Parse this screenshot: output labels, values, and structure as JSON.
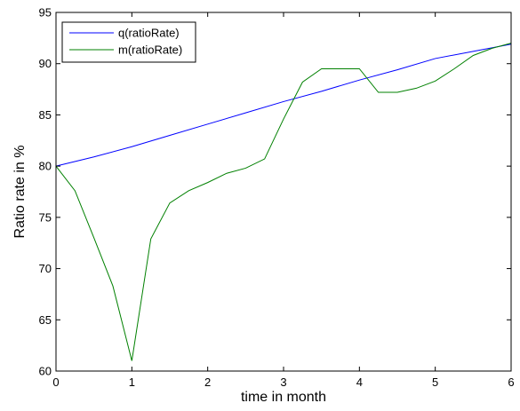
{
  "chart_data": {
    "type": "line",
    "title": "",
    "xlabel": "time in month",
    "ylabel": "Ratio rate in %",
    "xlim": [
      0,
      6
    ],
    "ylim": [
      60,
      95
    ],
    "xticks": [
      0,
      1,
      2,
      3,
      4,
      5,
      6
    ],
    "yticks": [
      60,
      65,
      70,
      75,
      80,
      85,
      90,
      95
    ],
    "grid": false,
    "legend": "top-left",
    "series": [
      {
        "name": "q(ratioRate)",
        "color": "#0000ff",
        "x": [
          0,
          0.5,
          1,
          1.5,
          2,
          2.5,
          3,
          3.5,
          4,
          4.5,
          5,
          5.5,
          6
        ],
        "y": [
          80,
          80.9,
          81.9,
          83,
          84.1,
          85.2,
          86.3,
          87.3,
          88.4,
          89.4,
          90.5,
          91.2,
          91.9
        ]
      },
      {
        "name": "m(ratioRate)",
        "color": "#008000",
        "x": [
          0,
          0.25,
          0.5,
          0.75,
          1,
          1.25,
          1.5,
          1.75,
          2,
          2.25,
          2.5,
          2.75,
          3,
          3.25,
          3.5,
          3.75,
          4,
          4.25,
          4.5,
          4.75,
          5,
          5.25,
          5.5,
          5.75,
          6
        ],
        "y": [
          80,
          77.6,
          73,
          68.3,
          61,
          72.9,
          76.4,
          77.6,
          78.4,
          79.3,
          79.8,
          80.7,
          84.6,
          88.2,
          89.5,
          89.5,
          89.5,
          87.2,
          87.2,
          87.6,
          88.3,
          89.5,
          90.8,
          91.5,
          92
        ]
      }
    ]
  }
}
